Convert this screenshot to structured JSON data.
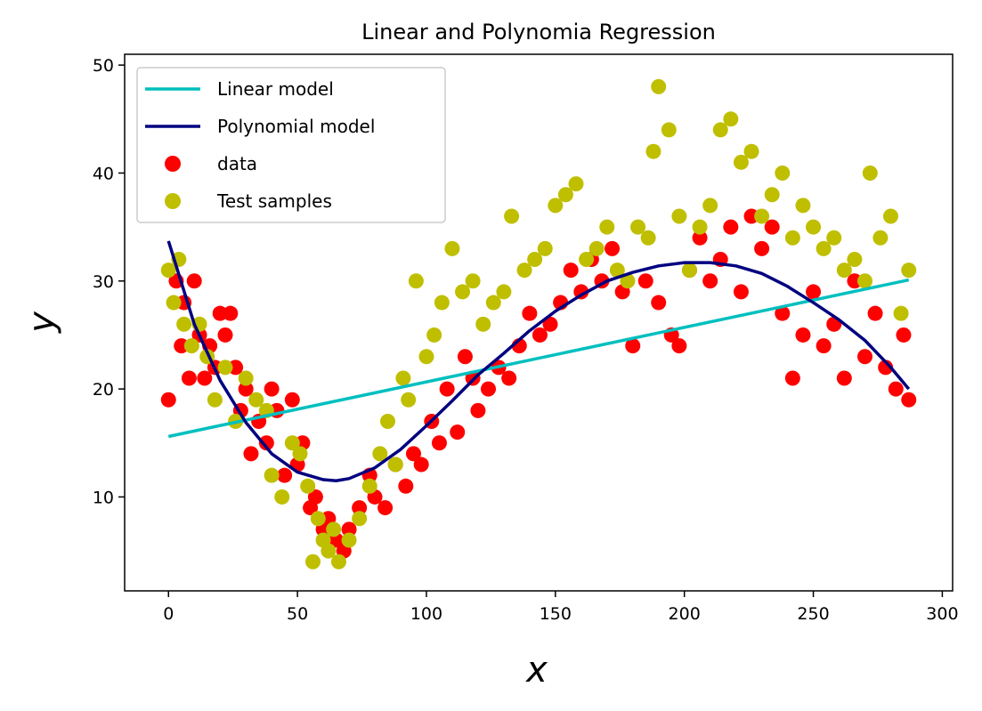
{
  "chart_data": {
    "type": "scatter",
    "title": "Linear and Polynomia Regression",
    "xlabel": "x",
    "ylabel": "y",
    "xlim": [
      -17,
      304
    ],
    "ylim": [
      1.3,
      51
    ],
    "xticks": [
      0,
      50,
      100,
      150,
      200,
      250,
      300
    ],
    "yticks": [
      10,
      20,
      30,
      40,
      50
    ],
    "grid": false,
    "legend_position": "top-left",
    "colors": {
      "linear": "#00bfbf",
      "polynomial": "#000080",
      "data": "#ff0000",
      "test": "#bfbf00"
    },
    "series": [
      {
        "name": "Linear model",
        "kind": "line",
        "color": "#00bfbf",
        "x": [
          0,
          287
        ],
        "y": [
          15.6,
          30.1
        ]
      },
      {
        "name": "Polynomial model",
        "kind": "line",
        "color": "#000080",
        "x": [
          0,
          10,
          20,
          30,
          40,
          50,
          60,
          65,
          70,
          80,
          90,
          100,
          110,
          120,
          130,
          140,
          150,
          160,
          170,
          180,
          190,
          200,
          210,
          220,
          230,
          240,
          250,
          260,
          270,
          280,
          287
        ],
        "y": [
          33.7,
          26.0,
          20.8,
          16.9,
          14.0,
          12.3,
          11.6,
          11.5,
          11.7,
          12.7,
          14.4,
          16.6,
          18.9,
          21.3,
          23.3,
          25.4,
          27.2,
          28.7,
          30.0,
          30.8,
          31.4,
          31.7,
          31.7,
          31.4,
          30.7,
          29.5,
          28.0,
          26.4,
          24.5,
          22.0,
          20.0
        ]
      },
      {
        "name": "data",
        "kind": "scatter",
        "color": "#ff0000",
        "x": [
          0,
          3,
          5,
          6,
          8,
          10,
          12,
          14,
          16,
          18,
          20,
          22,
          24,
          26,
          28,
          30,
          32,
          35,
          38,
          40,
          42,
          45,
          48,
          50,
          52,
          55,
          57,
          60,
          62,
          65,
          68,
          70,
          74,
          78,
          80,
          84,
          88,
          92,
          95,
          98,
          102,
          105,
          108,
          112,
          115,
          118,
          120,
          124,
          128,
          132,
          136,
          140,
          144,
          148,
          152,
          156,
          160,
          164,
          168,
          172,
          176,
          180,
          185,
          190,
          195,
          198,
          202,
          206,
          210,
          214,
          218,
          222,
          226,
          230,
          234,
          238,
          242,
          246,
          250,
          254,
          258,
          262,
          266,
          270,
          274,
          278,
          282,
          285,
          287
        ],
        "y": [
          19,
          30,
          24,
          28,
          21,
          30,
          25,
          21,
          24,
          22,
          27,
          25,
          27,
          22,
          18,
          20,
          14,
          17,
          15,
          20,
          18,
          12,
          19,
          13,
          15,
          9,
          10,
          7,
          8,
          6,
          5,
          7,
          9,
          12,
          10,
          9,
          13,
          11,
          14,
          13,
          17,
          15,
          20,
          16,
          23,
          21,
          18,
          20,
          22,
          21,
          24,
          27,
          25,
          26,
          28,
          31,
          29,
          32,
          30,
          33,
          29,
          24,
          30,
          28,
          25,
          24,
          31,
          34,
          30,
          32,
          35,
          29,
          36,
          33,
          35,
          27,
          21,
          25,
          29,
          24,
          26,
          21,
          30,
          23,
          27,
          22,
          20,
          25,
          19
        ]
      },
      {
        "name": "Test samples",
        "kind": "scatter",
        "color": "#bfbf00",
        "x": [
          0,
          2,
          4,
          6,
          9,
          12,
          15,
          18,
          22,
          26,
          30,
          34,
          38,
          40,
          44,
          48,
          51,
          54,
          56,
          58,
          60,
          62,
          64,
          66,
          70,
          74,
          78,
          82,
          85,
          88,
          91,
          93,
          96,
          100,
          103,
          106,
          110,
          114,
          118,
          122,
          126,
          130,
          133,
          138,
          142,
          146,
          150,
          154,
          158,
          162,
          166,
          170,
          174,
          178,
          182,
          186,
          188,
          190,
          194,
          198,
          202,
          206,
          210,
          214,
          218,
          222,
          226,
          230,
          234,
          238,
          242,
          246,
          250,
          254,
          258,
          262,
          266,
          270,
          272,
          276,
          280,
          284,
          287
        ],
        "y": [
          31,
          28,
          32,
          26,
          24,
          26,
          23,
          19,
          22,
          17,
          21,
          19,
          18,
          12,
          10,
          15,
          14,
          11,
          4,
          8,
          6,
          5,
          7,
          4,
          6,
          8,
          11,
          14,
          17,
          13,
          21,
          19,
          30,
          23,
          25,
          28,
          33,
          29,
          30,
          26,
          28,
          29,
          36,
          31,
          32,
          33,
          37,
          38,
          39,
          32,
          33,
          35,
          31,
          30,
          35,
          34,
          42,
          48,
          44,
          36,
          31,
          35,
          37,
          44,
          45,
          41,
          42,
          36,
          38,
          40,
          34,
          37,
          35,
          33,
          34,
          31,
          32,
          30,
          40,
          34,
          36,
          27,
          31
        ]
      }
    ]
  }
}
